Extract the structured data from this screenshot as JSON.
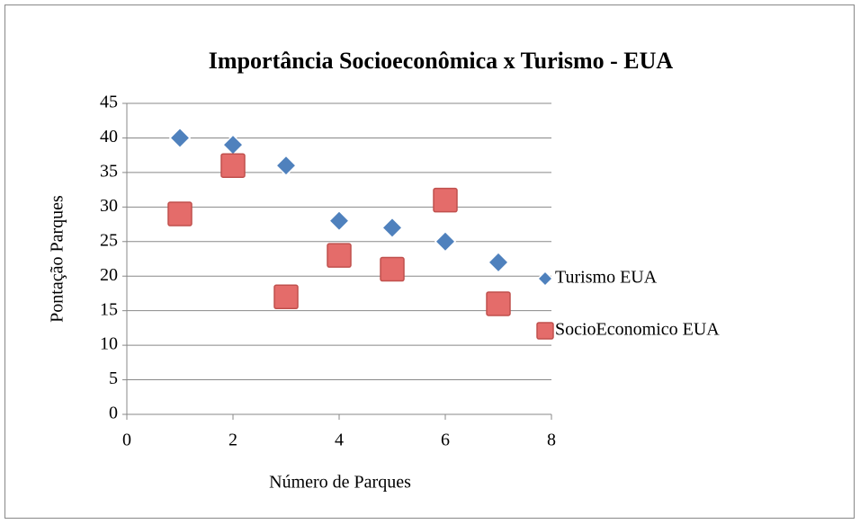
{
  "chart_data": {
    "type": "scatter",
    "title": "Importância Socioeconômica x Turismo - EUA",
    "x_label": "Número de Parques",
    "y_label": "Pontação Parques",
    "x": [
      1,
      2,
      3,
      4,
      5,
      6,
      7
    ],
    "series": [
      {
        "name": "Turismo EUA",
        "color": "#4f81bd",
        "marker": "diamond",
        "values": [
          40,
          39,
          36,
          28,
          27,
          25,
          22
        ]
      },
      {
        "name": "SocioEconomico EUA",
        "color": "#e46c6a",
        "marker": "square",
        "values": [
          29,
          36,
          17,
          23,
          21,
          31,
          16
        ]
      }
    ],
    "xlim": [
      0,
      8
    ],
    "xticks": [
      0,
      2,
      4,
      6,
      8
    ],
    "ylim": [
      0,
      45
    ],
    "yticks": [
      0,
      5,
      10,
      15,
      20,
      25,
      30,
      35,
      40,
      45
    ],
    "grid": true,
    "legend": "right"
  }
}
